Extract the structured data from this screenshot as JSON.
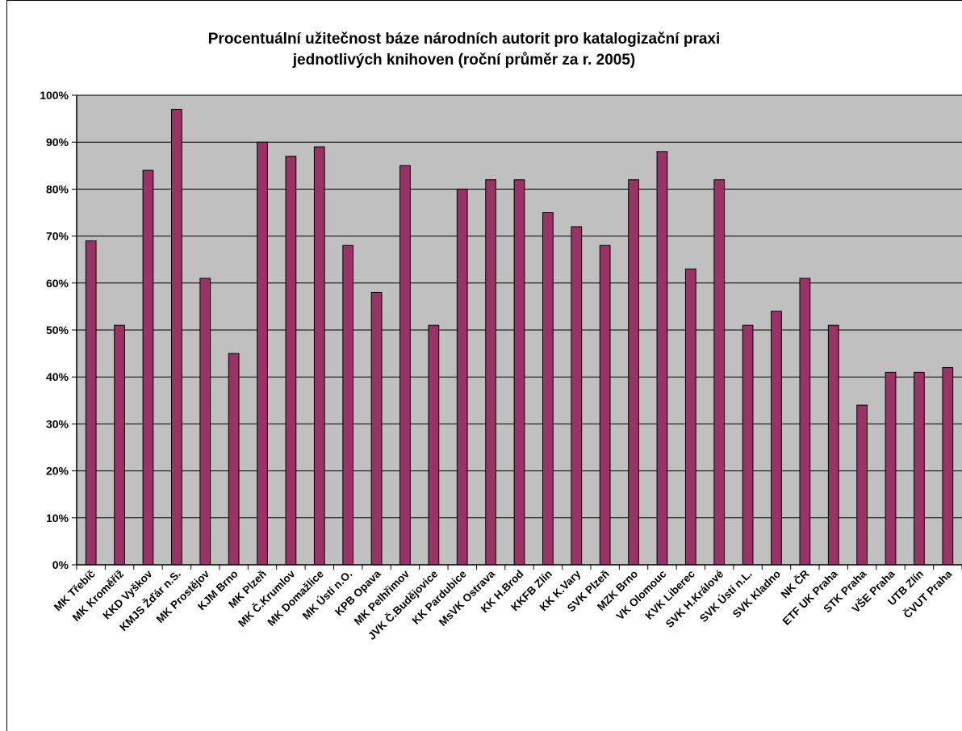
{
  "chart_data": {
    "type": "bar",
    "title_lines": [
      "Procentuální užitečnost báze národních autorit pro katalogizační praxi",
      "jednotlivých knihoven (roční průměr za r. 2005)"
    ],
    "xlabel": "",
    "ylabel": "",
    "ylim": [
      0,
      100
    ],
    "yticks": [
      "0%",
      "10%",
      "20%",
      "30%",
      "40%",
      "50%",
      "60%",
      "70%",
      "80%",
      "90%",
      "100%"
    ],
    "grid": true,
    "legend": "none",
    "colors": {
      "bar": "#993366",
      "plot_bg": "#c0c0c0",
      "grid": "#000000"
    },
    "categories": [
      "MK Třebíč",
      "MK Kroměříž",
      "KKD Vyškov",
      "KMJS Žďár n.S.",
      "MK Prostějov",
      "KJM Brno",
      "MK Plzeň",
      "MK Č.Krumlov",
      "MK Domažlice",
      "MK Ústí n.O.",
      "KPB Opava",
      "MK Pelhřimov",
      "JVK Č.Budějovice",
      "KK Pardubice",
      "MsVK Ostrava",
      "KK H.Brod",
      "KKFB Zlín",
      "KK K.Vary",
      "SVK Plzeň",
      "MZK Brno",
      "VK Olomouc",
      "KVK Liberec",
      "SVK H.Králové",
      "SVK Ústí n.L.",
      "SVK Kladno",
      "NK ČR",
      "ETF UK Praha",
      "STK Praha",
      "VŠE Praha",
      "UTB Zlín",
      "ČVUT Praha"
    ],
    "values": [
      69,
      51,
      84,
      97,
      61,
      45,
      90,
      87,
      89,
      68,
      58,
      85,
      51,
      80,
      82,
      82,
      75,
      72,
      68,
      82,
      88,
      63,
      82,
      51,
      54,
      61,
      51,
      34,
      41,
      41,
      42
    ]
  }
}
